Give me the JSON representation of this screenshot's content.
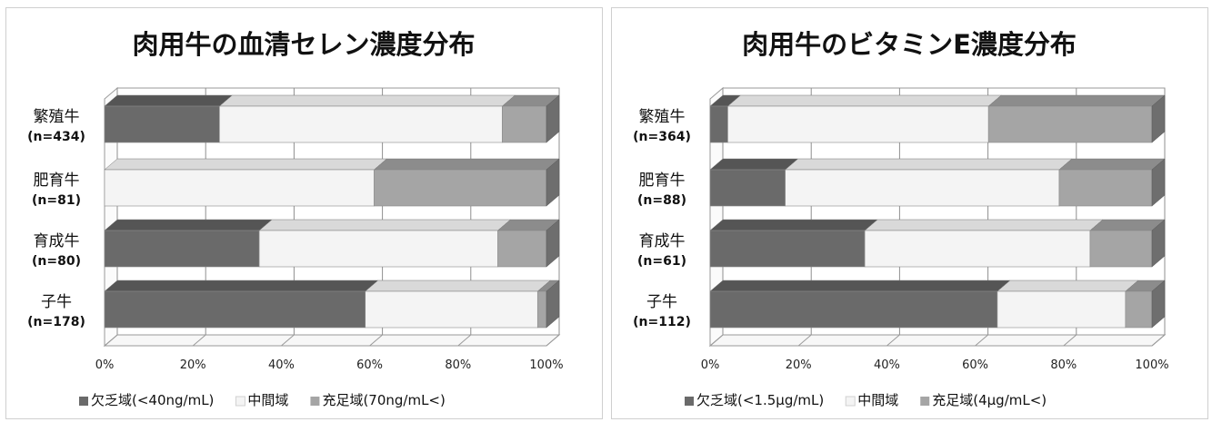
{
  "chart_data": [
    {
      "type": "bar",
      "orientation": "horizontal",
      "stacked": true,
      "percent_stacked": true,
      "three_d": true,
      "title": "肉用牛の血清セレン濃度分布",
      "categories": [
        {
          "name": "繁殖牛",
          "n": "(n=434)"
        },
        {
          "name": "肥育牛",
          "n": "(n=81)"
        },
        {
          "name": "育成牛",
          "n": "(n=80)"
        },
        {
          "name": "子牛",
          "n": "(n=178)"
        }
      ],
      "series": [
        {
          "name": "欠乏域(<40ng/mL)",
          "color": "#6a6a6a",
          "top_color": "#555555",
          "values": [
            26,
            0,
            35,
            59
          ]
        },
        {
          "name": "中間域",
          "color": "#f4f4f4",
          "top_color": "#d9d9d9",
          "values": [
            64,
            61,
            54,
            39
          ]
        },
        {
          "name": "充足域(70ng/mL<)",
          "color": "#a5a5a5",
          "top_color": "#8c8c8c",
          "values": [
            10,
            39,
            11,
            2
          ]
        }
      ],
      "xticks": [
        "0%",
        "20%",
        "40%",
        "60%",
        "80%",
        "100%"
      ],
      "xlim": [
        0,
        100
      ],
      "grid": true,
      "legend_position": "bottom"
    },
    {
      "type": "bar",
      "orientation": "horizontal",
      "stacked": true,
      "percent_stacked": true,
      "three_d": true,
      "title": "肉用牛のビタミンE濃度分布",
      "categories": [
        {
          "name": "繁殖牛",
          "n": "(n=364)"
        },
        {
          "name": "肥育牛",
          "n": "(n=88)"
        },
        {
          "name": "育成牛",
          "n": "(n=61)"
        },
        {
          "name": "子牛",
          "n": "(n=112)"
        }
      ],
      "series": [
        {
          "name": "欠乏域(<1.5μg/mL)",
          "color": "#6a6a6a",
          "top_color": "#555555",
          "values": [
            4,
            17,
            35,
            65
          ]
        },
        {
          "name": "中間域",
          "color": "#f4f4f4",
          "top_color": "#d9d9d9",
          "values": [
            59,
            62,
            51,
            29
          ]
        },
        {
          "name": "充足域(4μg/mL<)",
          "color": "#a5a5a5",
          "top_color": "#8c8c8c",
          "values": [
            37,
            21,
            14,
            6
          ]
        }
      ],
      "xticks": [
        "0%",
        "20%",
        "40%",
        "60%",
        "80%",
        "100%"
      ],
      "xlim": [
        0,
        100
      ],
      "grid": true,
      "legend_position": "bottom"
    }
  ]
}
